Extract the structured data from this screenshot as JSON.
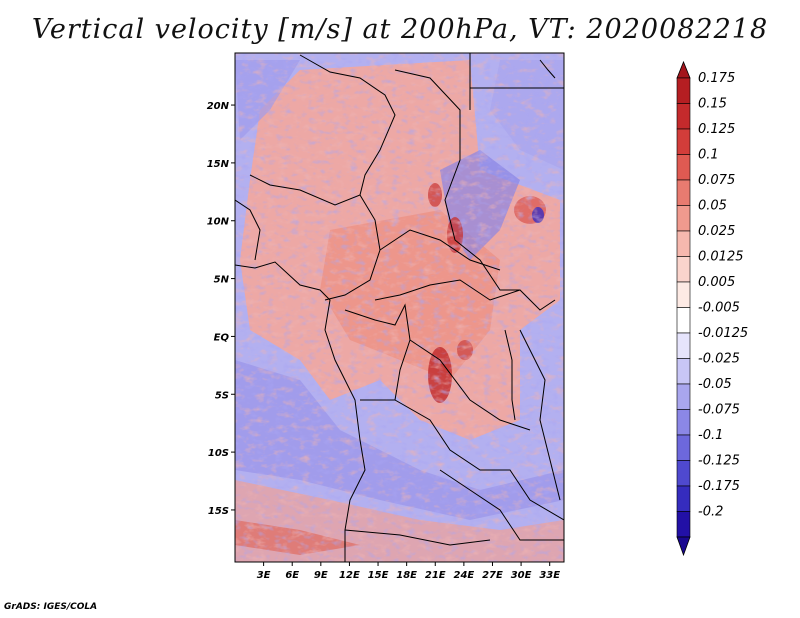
{
  "title": "Vertical velocity [m/s] at 200hPa, VT: 2020082218",
  "credit": "GrADS: IGES/COLA",
  "map": {
    "lat_range": [
      -19.5,
      24.5
    ],
    "lon_range": [
      0,
      34.5
    ],
    "lat_ticks": [
      {
        "value": 20,
        "label": "20N"
      },
      {
        "value": 15,
        "label": "15N"
      },
      {
        "value": 10,
        "label": "10N"
      },
      {
        "value": 5,
        "label": "5N"
      },
      {
        "value": 0,
        "label": "EQ"
      },
      {
        "value": -5,
        "label": "5S"
      },
      {
        "value": -10,
        "label": "10S"
      },
      {
        "value": -15,
        "label": "15S"
      }
    ],
    "lon_ticks": [
      {
        "value": 3,
        "label": "3E"
      },
      {
        "value": 6,
        "label": "6E"
      },
      {
        "value": 9,
        "label": "9E"
      },
      {
        "value": 12,
        "label": "12E"
      },
      {
        "value": 15,
        "label": "15E"
      },
      {
        "value": 18,
        "label": "18E"
      },
      {
        "value": 21,
        "label": "21E"
      },
      {
        "value": 24,
        "label": "24E"
      },
      {
        "value": 27,
        "label": "27E"
      },
      {
        "value": 30,
        "label": "30E"
      },
      {
        "value": 33,
        "label": "33E"
      }
    ]
  },
  "colorbar": {
    "levels": [
      {
        "label": "0.175",
        "color": "#b51e22"
      },
      {
        "label": "0.15",
        "color": "#c42a2c"
      },
      {
        "label": "0.125",
        "color": "#d23d3a"
      },
      {
        "label": "0.1",
        "color": "#df5a52"
      },
      {
        "label": "0.075",
        "color": "#e87b70"
      },
      {
        "label": "0.05",
        "color": "#f09a8e"
      },
      {
        "label": "0.025",
        "color": "#f6b8ae"
      },
      {
        "label": "0.0125",
        "color": "#fad4cc"
      },
      {
        "label": "0.005",
        "color": "#fdeae4"
      },
      {
        "label": "-0.005",
        "color": "#ffffff"
      },
      {
        "label": "-0.0125",
        "color": "#e6e4fc"
      },
      {
        "label": "-0.025",
        "color": "#c8c6f6"
      },
      {
        "label": "-0.05",
        "color": "#a9a6ee"
      },
      {
        "label": "-0.075",
        "color": "#8b87e6"
      },
      {
        "label": "-0.1",
        "color": "#6d68dc"
      },
      {
        "label": "-0.125",
        "color": "#4f49cf"
      },
      {
        "label": "-0.175",
        "color": "#352cbe"
      },
      {
        "label": "-0.2",
        "color": "#2210a6"
      }
    ],
    "top_arrow_color": "#a3151c",
    "bottom_arrow_color": "#1a0890"
  },
  "chart_data": {
    "type": "heatmap",
    "title": "Vertical velocity [m/s] at 200hPa, VT: 2020082218",
    "variable": "Vertical velocity",
    "units": "m/s",
    "level": "200hPa",
    "valid_time": "2020082218",
    "x_range_deg_east": [
      0,
      34.5
    ],
    "y_range_deg_north": [
      -19.5,
      24.5
    ],
    "contour_levels": [
      -0.2,
      -0.175,
      -0.125,
      -0.1,
      -0.075,
      -0.05,
      -0.025,
      -0.0125,
      -0.005,
      0.005,
      0.0125,
      0.025,
      0.05,
      0.075,
      0.1,
      0.125,
      0.15,
      0.175
    ]
  }
}
